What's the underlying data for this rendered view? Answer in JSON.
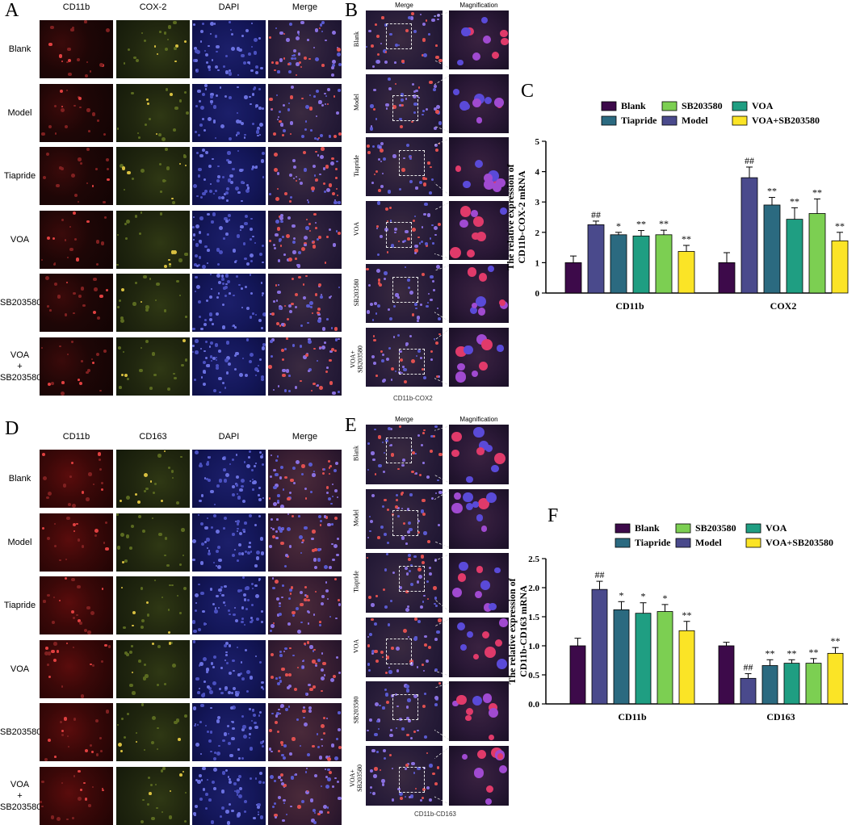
{
  "panels": {
    "A": {
      "letter": "A",
      "columns": [
        "CD11b",
        "COX-2",
        "DAPI",
        "Merge"
      ],
      "rows": [
        "Blank",
        "Model",
        "Tiapride",
        "VOA",
        "SB203580",
        "VOA\n+\nSB203580"
      ]
    },
    "B": {
      "letter": "B",
      "columns": [
        "Merge",
        "Magnification"
      ],
      "rows": [
        "Blank",
        "Model",
        "Tiapride",
        "VOA",
        "SB203580",
        "VOA+\nSB203580"
      ],
      "caption": "CD11b-COX2"
    },
    "D": {
      "letter": "D",
      "columns": [
        "CD11b",
        "CD163",
        "DAPI",
        "Merge"
      ],
      "rows": [
        "Blank",
        "Model",
        "Tiapride",
        "VOA",
        "SB203580",
        "VOA\n+\nSB203580"
      ]
    },
    "E": {
      "letter": "E",
      "columns": [
        "Merge",
        "Magnification"
      ],
      "rows": [
        "Blank",
        "Model",
        "Tiapride",
        "VOA",
        "SB203580",
        "VOA+\nSB203580"
      ],
      "caption": "CD11b-CD163"
    }
  },
  "legend": {
    "items": [
      {
        "label": "Blank",
        "color": "#3d0a4a"
      },
      {
        "label": "Model",
        "color": "#4a4a8c"
      },
      {
        "label": "Tiapride",
        "color": "#2b6a80"
      },
      {
        "label": "VOA",
        "color": "#1f9e82"
      },
      {
        "label": "SB203580",
        "color": "#7ccf52"
      },
      {
        "label": "VOA+SB203580",
        "color": "#fbe426"
      }
    ]
  },
  "chart_data": [
    {
      "panel": "C",
      "type": "bar",
      "ylabel": "The relative expression of\nCD11b-COX-2 mRNA",
      "ylim": [
        0,
        5
      ],
      "yticks": [
        0,
        1,
        2,
        3,
        4,
        5
      ],
      "categories": [
        "CD11b",
        "COX2"
      ],
      "series": [
        {
          "name": "Blank",
          "values": [
            1.0,
            1.0
          ],
          "errors": [
            0.22,
            0.33
          ],
          "marks": [
            "",
            ""
          ]
        },
        {
          "name": "Model",
          "values": [
            2.25,
            3.8
          ],
          "errors": [
            0.12,
            0.35
          ],
          "marks": [
            "##",
            "##"
          ]
        },
        {
          "name": "Tiapride",
          "values": [
            1.92,
            2.9
          ],
          "errors": [
            0.08,
            0.25
          ],
          "marks": [
            "*",
            "**"
          ]
        },
        {
          "name": "VOA",
          "values": [
            1.88,
            2.43
          ],
          "errors": [
            0.18,
            0.38
          ],
          "marks": [
            "**",
            "**"
          ]
        },
        {
          "name": "SB203580",
          "values": [
            1.92,
            2.62
          ],
          "errors": [
            0.15,
            0.48
          ],
          "marks": [
            "**",
            "**"
          ]
        },
        {
          "name": "VOA+SB203580",
          "values": [
            1.37,
            1.72
          ],
          "errors": [
            0.2,
            0.28
          ],
          "marks": [
            "**",
            "**"
          ]
        }
      ]
    },
    {
      "panel": "F",
      "type": "bar",
      "ylabel": "The relative expression of\nCD11b-CD163 mRNA",
      "ylim": [
        0,
        2.5
      ],
      "yticks": [
        0.0,
        0.5,
        1.0,
        1.5,
        2.0,
        2.5
      ],
      "categories": [
        "CD11b",
        "CD163"
      ],
      "series": [
        {
          "name": "Blank",
          "values": [
            1.0,
            1.0
          ],
          "errors": [
            0.13,
            0.06
          ],
          "marks": [
            "",
            ""
          ]
        },
        {
          "name": "Model",
          "values": [
            1.97,
            0.44
          ],
          "errors": [
            0.14,
            0.08
          ],
          "marks": [
            "##",
            "##"
          ]
        },
        {
          "name": "Tiapride",
          "values": [
            1.62,
            0.66
          ],
          "errors": [
            0.14,
            0.1
          ],
          "marks": [
            "*",
            "**"
          ]
        },
        {
          "name": "VOA",
          "values": [
            1.56,
            0.7
          ],
          "errors": [
            0.18,
            0.06
          ],
          "marks": [
            "*",
            "**"
          ]
        },
        {
          "name": "SB203580",
          "values": [
            1.59,
            0.7
          ],
          "errors": [
            0.12,
            0.08
          ],
          "marks": [
            "*",
            "**"
          ]
        },
        {
          "name": "VOA+SB203580",
          "values": [
            1.26,
            0.87
          ],
          "errors": [
            0.16,
            0.1
          ],
          "marks": [
            "**",
            "**"
          ]
        }
      ]
    }
  ]
}
